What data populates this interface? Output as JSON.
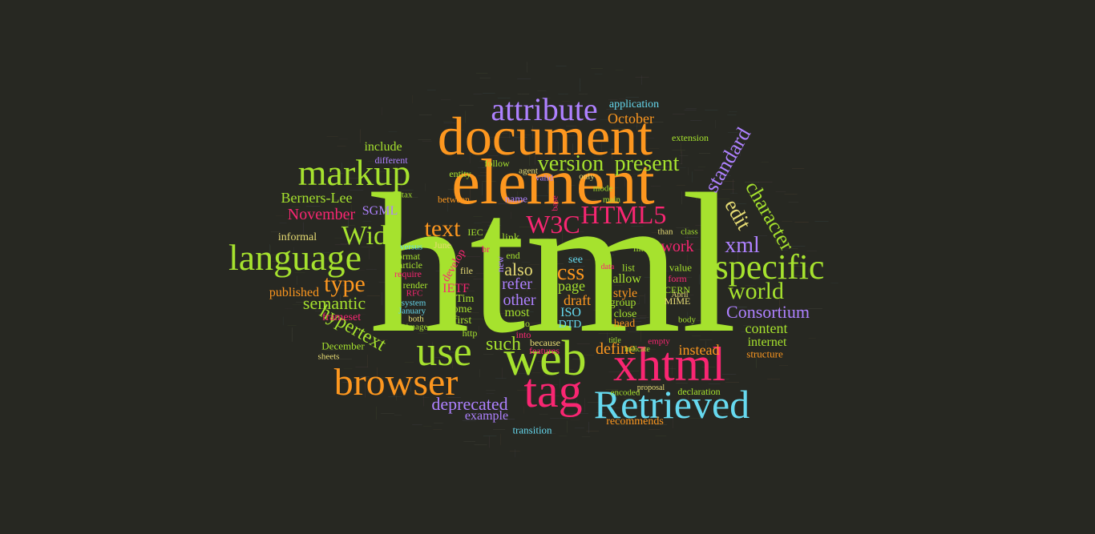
{
  "palette": {
    "background": "#272822",
    "green": "#A6E22E",
    "orange": "#FD971F",
    "pink": "#F92672",
    "cyan": "#66D9EF",
    "purple": "#AE81FF",
    "yellow": "#E6DB74"
  },
  "words": [
    "html",
    "element",
    "document",
    "web",
    "xhtml",
    "tag",
    "browser",
    "Retrieved",
    "use",
    "markup",
    "attribute",
    "language",
    "specific",
    "W3C",
    "HTML5",
    "Wide",
    "text",
    "type",
    "character",
    "edit",
    "standard",
    "version",
    "present",
    "world",
    "css",
    "xml",
    "November",
    "semantic",
    "hypertext",
    "Berners-Lee",
    "Consortium",
    "include",
    "October",
    "application",
    "SGML",
    "also",
    "refer",
    "other",
    "content",
    "deprecated",
    "work",
    "draft",
    "page",
    "such",
    "define",
    "instead",
    "internet",
    "published",
    "informal",
    "example",
    "allow",
    "style",
    "ISO",
    "IETF",
    "frameset",
    "most",
    "Tim",
    "first",
    "some",
    "DTD",
    "head",
    "close",
    "group",
    "recommends",
    "transition",
    "declaration",
    "structure",
    "features",
    "because",
    "link",
    "end",
    "see",
    "list",
    "value",
    "form",
    "CERN",
    "MIME",
    "require",
    "render",
    "article",
    "RFC",
    "system",
    "January",
    "December",
    "http",
    "both",
    "image",
    "sheets",
    "develop",
    "format",
    "versus",
    "file",
    "June",
    "IEC",
    "br",
    "new",
    "no",
    "into",
    "data",
    "like",
    "than",
    "class",
    "extension",
    "between",
    "name",
    "base",
    "follow",
    "entity",
    "syntax",
    "different",
    "mode",
    "main",
    "valid",
    "only",
    "agent",
    "encoded",
    "empty",
    "title",
    "indicate",
    "proposal",
    "body",
    "April"
  ]
}
